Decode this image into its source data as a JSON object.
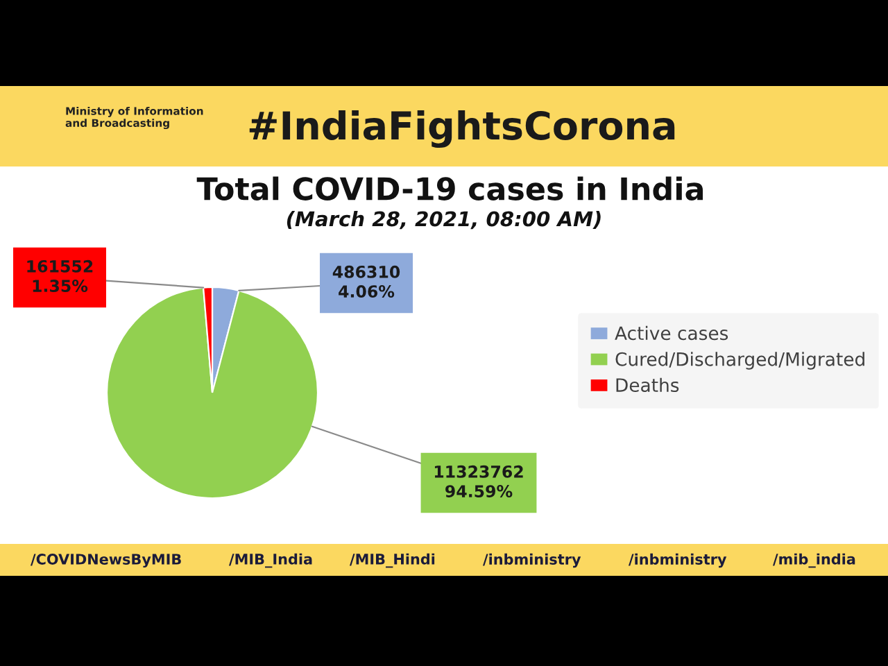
{
  "chart_data": {
    "type": "pie",
    "title": "Total COVID-19 cases in India",
    "subtitle": "(March 28, 2021, 08:00 AM)",
    "categories": [
      "Active cases",
      "Cured/Discharged/Migrated",
      "Deaths"
    ],
    "values": [
      486310,
      11323762,
      161552
    ],
    "colors": [
      "#8eaadb",
      "#92d050",
      "#ff0000"
    ],
    "value_labels": [
      "486310\n4.06%",
      "11323762\n94.59%",
      "161552\n1.35%"
    ],
    "legend": "right",
    "annotations": [
      "Ministry of Information\nand Broadcasting",
      "#IndiaFightsCorona",
      "/COVIDNewsByMIB",
      "/MIB_India",
      "/MIB_Hindi",
      "/inbministry",
      "/inbministry",
      "/mib_india"
    ]
  }
}
